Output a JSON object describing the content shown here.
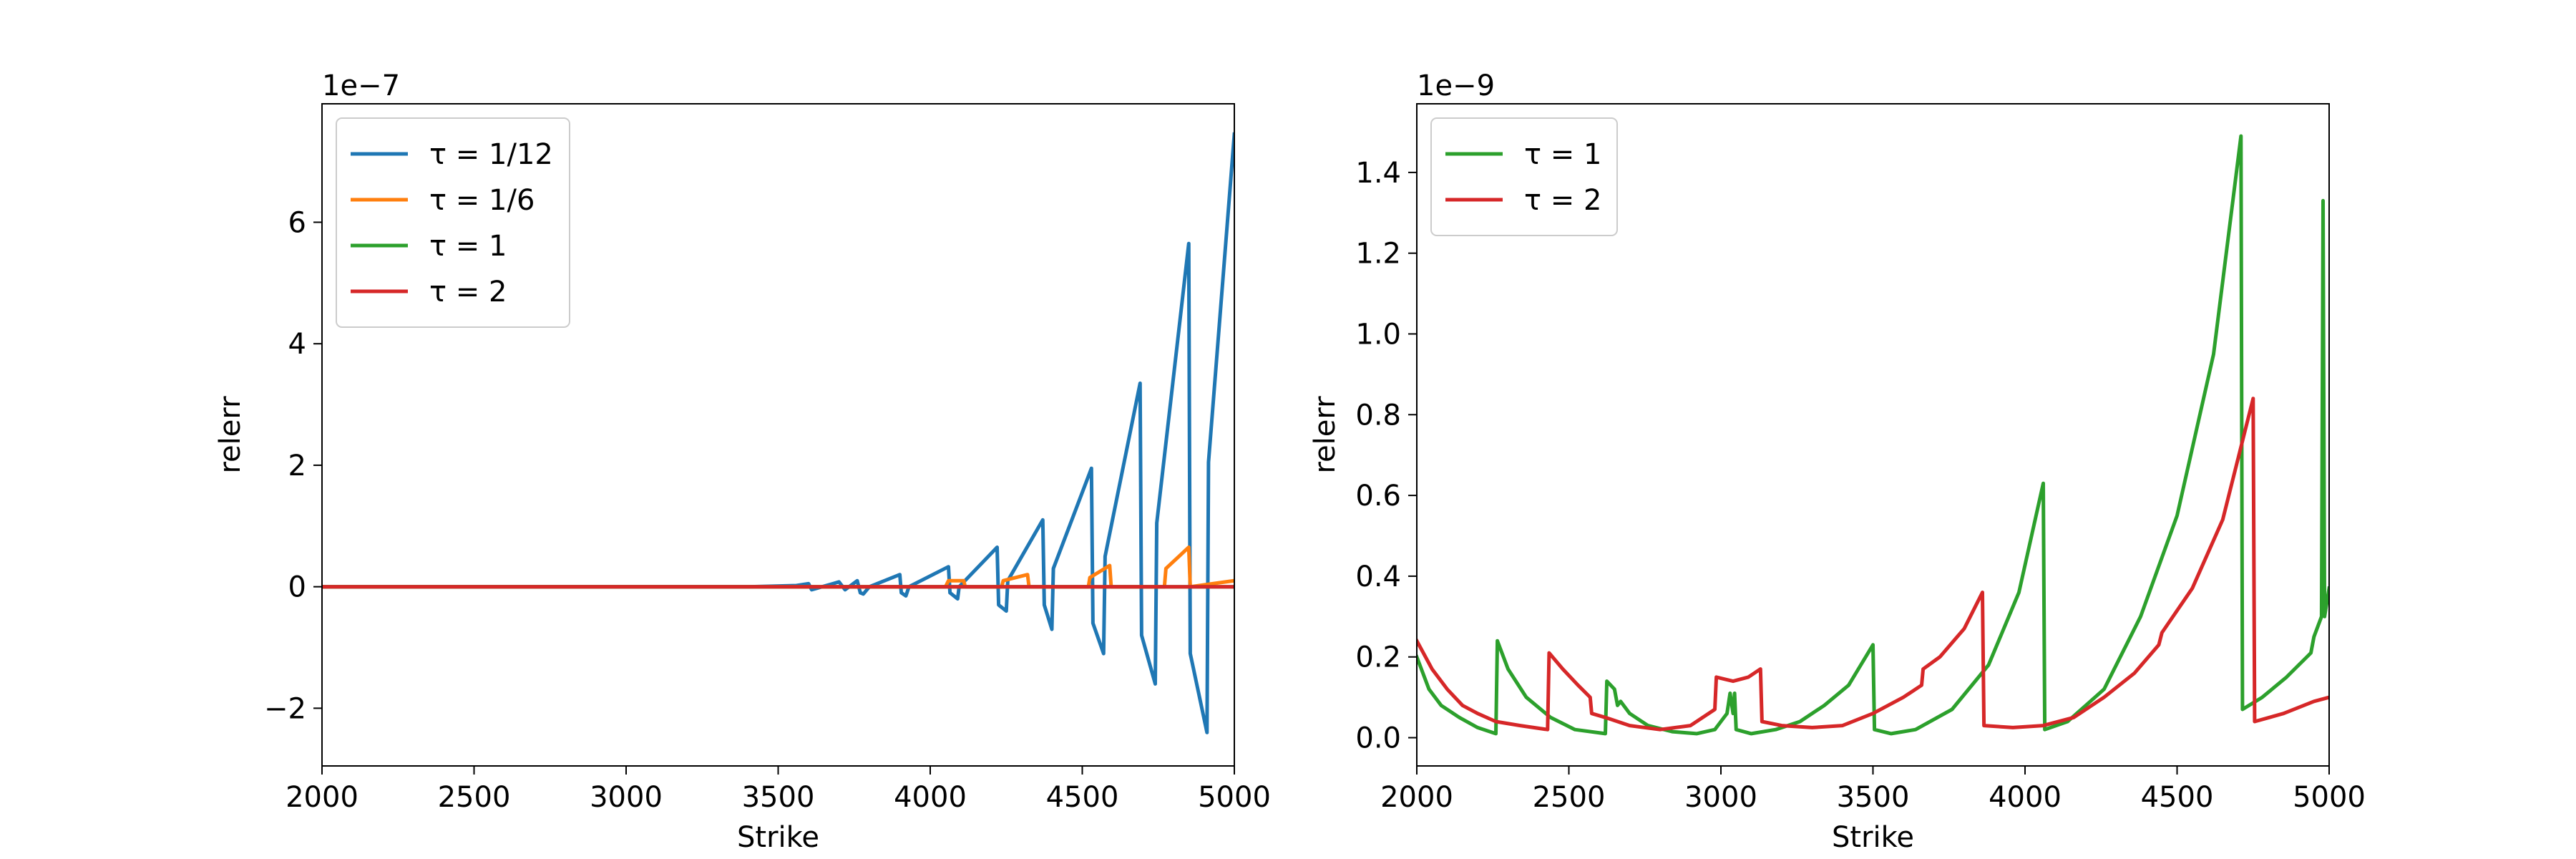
{
  "chart_data": [
    {
      "type": "line",
      "xlabel": "Strike",
      "ylabel": "relerr",
      "offset_text": "1e−7",
      "xlim": [
        2000,
        5000
      ],
      "ylim": [
        -2.95,
        7.95
      ],
      "xticks": [
        2000,
        2500,
        3000,
        3500,
        4000,
        4500,
        5000
      ],
      "xtick_labels": [
        "2000",
        "2500",
        "3000",
        "3500",
        "4000",
        "4500",
        "5000"
      ],
      "yticks": [
        -2,
        0,
        2,
        4,
        6
      ],
      "ytick_labels": [
        "−2",
        "0",
        "2",
        "4",
        "6"
      ],
      "legend": "top-left",
      "series": [
        {
          "name": "τ = 1/12",
          "color": "#1f77b4",
          "points": [
            [
              2000,
              0
            ],
            [
              3400,
              0
            ],
            [
              3560,
              0.02
            ],
            [
              3600,
              0.05
            ],
            [
              3610,
              -0.05
            ],
            [
              3680,
              0.05
            ],
            [
              3700,
              0.08
            ],
            [
              3720,
              -0.05
            ],
            [
              3760,
              0.1
            ],
            [
              3770,
              -0.1
            ],
            [
              3780,
              -0.12
            ],
            [
              3800,
              0
            ],
            [
              3900,
              0.2
            ],
            [
              3905,
              -0.1
            ],
            [
              3920,
              -0.15
            ],
            [
              3930,
              0
            ],
            [
              4060,
              0.33
            ],
            [
              4065,
              -0.1
            ],
            [
              4090,
              -0.2
            ],
            [
              4095,
              0
            ],
            [
              4220,
              0.65
            ],
            [
              4225,
              -0.3
            ],
            [
              4250,
              -0.4
            ],
            [
              4255,
              0.1
            ],
            [
              4370,
              1.1
            ],
            [
              4375,
              -0.3
            ],
            [
              4400,
              -0.7
            ],
            [
              4405,
              0.3
            ],
            [
              4530,
              1.95
            ],
            [
              4535,
              -0.6
            ],
            [
              4570,
              -1.1
            ],
            [
              4575,
              0.5
            ],
            [
              4690,
              3.35
            ],
            [
              4695,
              -0.8
            ],
            [
              4740,
              -1.6
            ],
            [
              4745,
              1.05
            ],
            [
              4850,
              5.65
            ],
            [
              4855,
              -1.1
            ],
            [
              4910,
              -2.4
            ],
            [
              4915,
              2.05
            ],
            [
              5000,
              7.45
            ]
          ]
        },
        {
          "name": "τ = 1/6",
          "color": "#ff7f0e",
          "points": [
            [
              2000,
              0
            ],
            [
              4050,
              0
            ],
            [
              4060,
              0.1
            ],
            [
              4110,
              0.1
            ],
            [
              4115,
              0
            ],
            [
              4235,
              0
            ],
            [
              4240,
              0.1
            ],
            [
              4320,
              0.2
            ],
            [
              4325,
              0
            ],
            [
              4520,
              0
            ],
            [
              4525,
              0.15
            ],
            [
              4590,
              0.35
            ],
            [
              4595,
              0
            ],
            [
              4770,
              0
            ],
            [
              4775,
              0.3
            ],
            [
              4850,
              0.65
            ],
            [
              4855,
              0
            ],
            [
              5000,
              0.1
            ]
          ]
        },
        {
          "name": "τ = 1",
          "color": "#2ca02c",
          "points": [
            [
              2000,
              0
            ],
            [
              5000,
              0
            ]
          ]
        },
        {
          "name": "τ = 2",
          "color": "#d62728",
          "points": [
            [
              2000,
              0
            ],
            [
              5000,
              0
            ]
          ]
        }
      ]
    },
    {
      "type": "line",
      "xlabel": "Strike",
      "ylabel": "relerr",
      "offset_text": "1e−9",
      "xlim": [
        2000,
        5000
      ],
      "ylim": [
        -0.07,
        1.57
      ],
      "xticks": [
        2000,
        2500,
        3000,
        3500,
        4000,
        4500,
        5000
      ],
      "xtick_labels": [
        "2000",
        "2500",
        "3000",
        "3500",
        "4000",
        "4500",
        "5000"
      ],
      "yticks": [
        0.0,
        0.2,
        0.4,
        0.6,
        0.8,
        1.0,
        1.2,
        1.4
      ],
      "ytick_labels": [
        "0.0",
        "0.2",
        "0.4",
        "0.6",
        "0.8",
        "1.0",
        "1.2",
        "1.4"
      ],
      "legend": "top-left",
      "series": [
        {
          "name": "τ = 1",
          "color": "#2ca02c",
          "points": [
            [
              2000,
              0.2
            ],
            [
              2040,
              0.12
            ],
            [
              2080,
              0.08
            ],
            [
              2140,
              0.05
            ],
            [
              2200,
              0.025
            ],
            [
              2260,
              0.01
            ],
            [
              2265,
              0.24
            ],
            [
              2300,
              0.17
            ],
            [
              2360,
              0.1
            ],
            [
              2440,
              0.05
            ],
            [
              2520,
              0.02
            ],
            [
              2620,
              0.01
            ],
            [
              2625,
              0.14
            ],
            [
              2650,
              0.12
            ],
            [
              2660,
              0.08
            ],
            [
              2670,
              0.09
            ],
            [
              2700,
              0.06
            ],
            [
              2760,
              0.03
            ],
            [
              2840,
              0.015
            ],
            [
              2920,
              0.01
            ],
            [
              2980,
              0.02
            ],
            [
              3020,
              0.06
            ],
            [
              3030,
              0.11
            ],
            [
              3040,
              0.06
            ],
            [
              3045,
              0.11
            ],
            [
              3050,
              0.02
            ],
            [
              3100,
              0.01
            ],
            [
              3180,
              0.02
            ],
            [
              3260,
              0.04
            ],
            [
              3340,
              0.08
            ],
            [
              3420,
              0.13
            ],
            [
              3460,
              0.18
            ],
            [
              3500,
              0.23
            ],
            [
              3505,
              0.02
            ],
            [
              3560,
              0.01
            ],
            [
              3640,
              0.02
            ],
            [
              3760,
              0.07
            ],
            [
              3880,
              0.18
            ],
            [
              3980,
              0.36
            ],
            [
              4060,
              0.63
            ],
            [
              4065,
              0.02
            ],
            [
              4140,
              0.04
            ],
            [
              4260,
              0.12
            ],
            [
              4380,
              0.3
            ],
            [
              4500,
              0.55
            ],
            [
              4620,
              0.95
            ],
            [
              4710,
              1.49
            ],
            [
              4715,
              0.07
            ],
            [
              4780,
              0.1
            ],
            [
              4860,
              0.15
            ],
            [
              4940,
              0.21
            ],
            [
              4950,
              0.25
            ],
            [
              4975,
              0.3
            ],
            [
              4980,
              1.33
            ],
            [
              4985,
              0.3
            ],
            [
              5000,
              0.37
            ]
          ]
        },
        {
          "name": "τ = 2",
          "color": "#d62728",
          "points": [
            [
              2000,
              0.24
            ],
            [
              2050,
              0.17
            ],
            [
              2100,
              0.12
            ],
            [
              2150,
              0.08
            ],
            [
              2200,
              0.06
            ],
            [
              2260,
              0.04
            ],
            [
              2340,
              0.03
            ],
            [
              2430,
              0.02
            ],
            [
              2435,
              0.21
            ],
            [
              2480,
              0.17
            ],
            [
              2530,
              0.13
            ],
            [
              2570,
              0.1
            ],
            [
              2575,
              0.06
            ],
            [
              2620,
              0.05
            ],
            [
              2700,
              0.03
            ],
            [
              2800,
              0.02
            ],
            [
              2900,
              0.03
            ],
            [
              2980,
              0.07
            ],
            [
              2985,
              0.15
            ],
            [
              3040,
              0.14
            ],
            [
              3090,
              0.15
            ],
            [
              3130,
              0.17
            ],
            [
              3135,
              0.04
            ],
            [
              3200,
              0.03
            ],
            [
              3300,
              0.025
            ],
            [
              3400,
              0.03
            ],
            [
              3500,
              0.06
            ],
            [
              3600,
              0.1
            ],
            [
              3660,
              0.13
            ],
            [
              3665,
              0.17
            ],
            [
              3720,
              0.2
            ],
            [
              3800,
              0.27
            ],
            [
              3860,
              0.36
            ],
            [
              3865,
              0.03
            ],
            [
              3960,
              0.025
            ],
            [
              4060,
              0.03
            ],
            [
              4160,
              0.05
            ],
            [
              4260,
              0.1
            ],
            [
              4360,
              0.16
            ],
            [
              4440,
              0.23
            ],
            [
              4450,
              0.26
            ],
            [
              4550,
              0.37
            ],
            [
              4650,
              0.54
            ],
            [
              4750,
              0.84
            ],
            [
              4755,
              0.04
            ],
            [
              4850,
              0.06
            ],
            [
              4950,
              0.09
            ],
            [
              5000,
              0.1
            ]
          ]
        }
      ]
    }
  ]
}
